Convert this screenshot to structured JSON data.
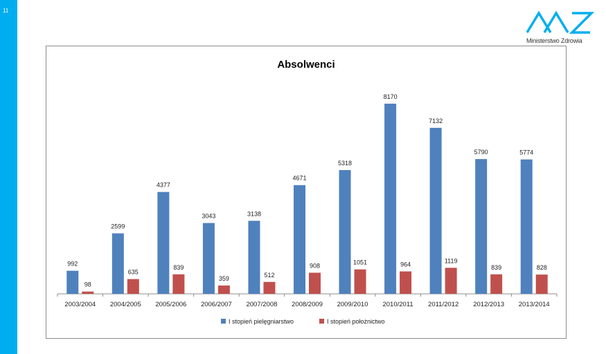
{
  "slide": {
    "number": "11"
  },
  "logo": {
    "text": "Ministerstwo Zdrowia"
  },
  "colors": {
    "accent": "#00aeef",
    "series1": "#4f81bd",
    "series2": "#c0504d"
  },
  "chart_data": {
    "type": "bar",
    "title": "Absolwenci",
    "categories": [
      "2003/2004",
      "2004/2005",
      "2005/2006",
      "2006/2007",
      "2007/2008",
      "2008/2009",
      "2009/2010",
      "2010/2011",
      "2011/2012",
      "2012/2013",
      "2013/2014"
    ],
    "series": [
      {
        "name": "I stopień pielęgniarstwo",
        "color": "#4f81bd",
        "values": [
          992,
          2599,
          4377,
          3043,
          3138,
          4671,
          5318,
          8170,
          7132,
          5790,
          5774
        ]
      },
      {
        "name": "I stopień położnictwo",
        "color": "#c0504d",
        "values": [
          98,
          635,
          839,
          359,
          512,
          908,
          1051,
          964,
          1119,
          839,
          828
        ]
      }
    ],
    "ylim": [
      0,
      9000
    ],
    "grid": false,
    "legend": "bottom",
    "data_labels": true
  }
}
